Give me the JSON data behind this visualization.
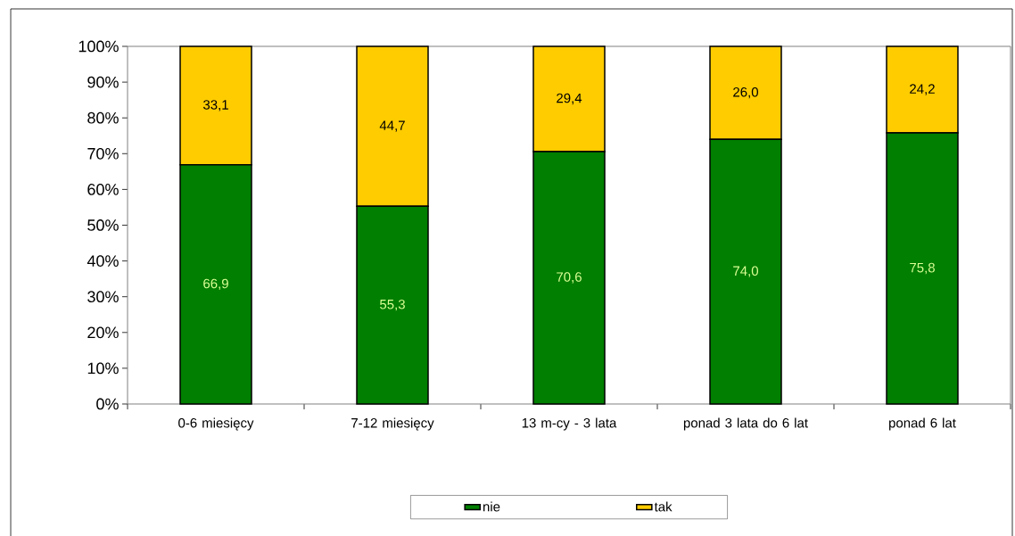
{
  "chart_data": {
    "type": "bar",
    "stacked": true,
    "categories": [
      "0-6 miesięcy",
      "7-12 miesięcy",
      "13 m-cy - 3 lata",
      "ponad 3 lata do 6 lat",
      "ponad 6 lat"
    ],
    "series": [
      {
        "name": "nie",
        "color": "#007f00",
        "values": [
          66.9,
          55.3,
          70.6,
          74.0,
          75.8
        ],
        "value_labels": [
          "66,9",
          "55,3",
          "70,6",
          "74,0",
          "75,8"
        ]
      },
      {
        "name": "tak",
        "color": "#ffcc00",
        "values": [
          33.1,
          44.7,
          29.4,
          26.0,
          24.2
        ],
        "value_labels": [
          "33,1",
          "44,7",
          "29,4",
          "26,0",
          "24,2"
        ]
      }
    ],
    "ylim": [
      0,
      100
    ],
    "yticks": [
      {
        "value": 0,
        "label": "0%"
      },
      {
        "value": 10,
        "label": "10%"
      },
      {
        "value": 20,
        "label": "20%"
      },
      {
        "value": 30,
        "label": "30%"
      },
      {
        "value": 40,
        "label": "40%"
      },
      {
        "value": 50,
        "label": "50%"
      },
      {
        "value": 60,
        "label": "60%"
      },
      {
        "value": 70,
        "label": "70%"
      },
      {
        "value": 80,
        "label": "80%"
      },
      {
        "value": 90,
        "label": "90%"
      },
      {
        "value": 100,
        "label": "100%"
      }
    ],
    "legend": "bottom"
  }
}
